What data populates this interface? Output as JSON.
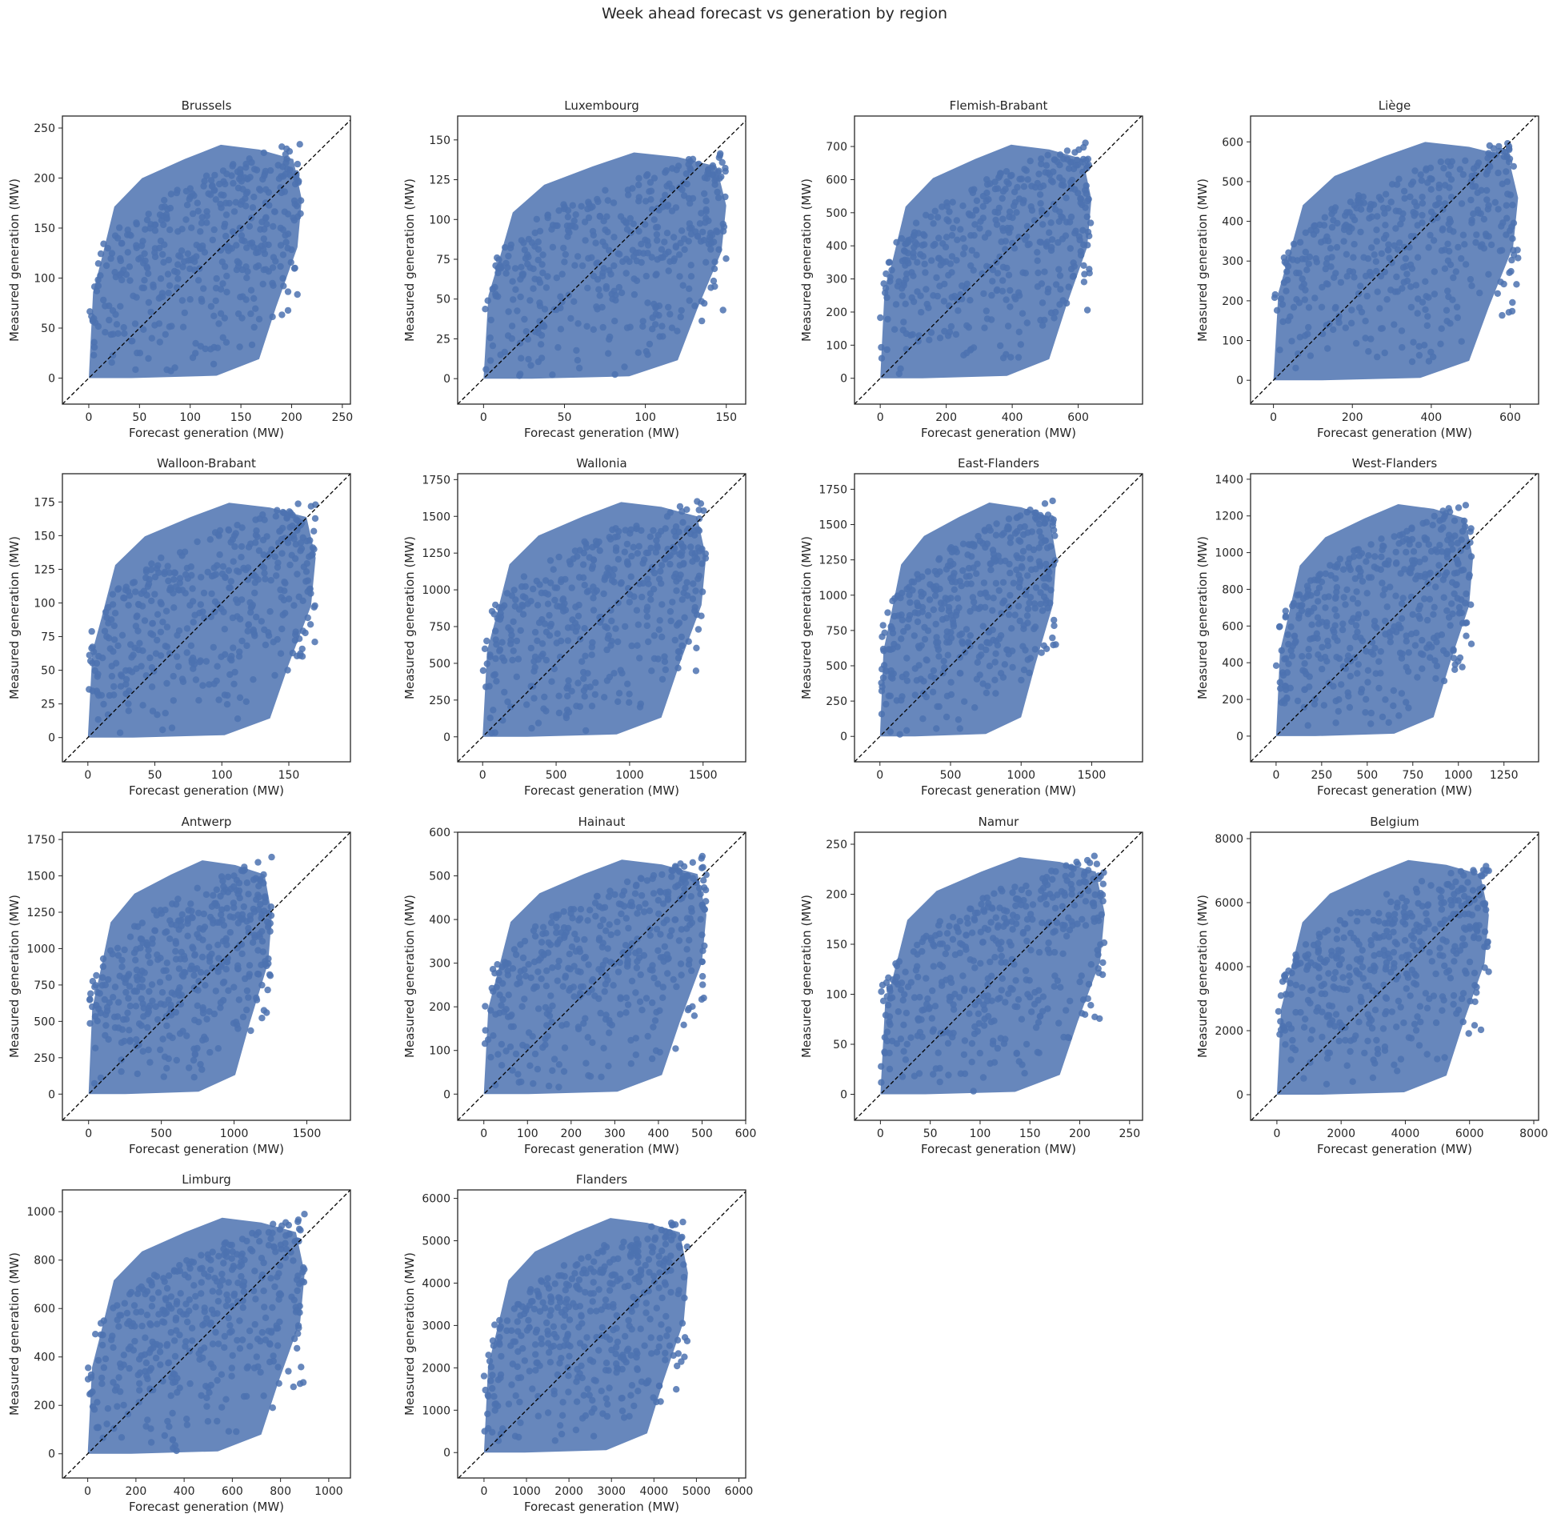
{
  "suptitle": "Week ahead forecast vs generation by region",
  "colors": {
    "points": "#4c72b0",
    "diagonal": "#000000",
    "frame": "#262626"
  },
  "chart_data": [
    {
      "type": "scatter",
      "title": "Brussels",
      "xlabel": "Forecast generation (MW)",
      "ylabel": "Measured generation (MW)",
      "xlim": [
        -26,
        258
      ],
      "ylim": [
        -26,
        262
      ],
      "xticks": [
        0,
        50,
        100,
        150,
        200,
        250
      ],
      "yticks": [
        0,
        50,
        100,
        150,
        200,
        250
      ],
      "xmax": 210,
      "ymax": 238,
      "grid": false
    },
    {
      "type": "scatter",
      "title": "Luxembourg",
      "xlabel": "Forecast generation (MW)",
      "ylabel": "Measured generation (MW)",
      "xlim": [
        -16,
        162
      ],
      "ylim": [
        -16,
        165
      ],
      "xticks": [
        0,
        50,
        100,
        150
      ],
      "yticks": [
        0,
        25,
        50,
        75,
        100,
        125,
        150
      ],
      "xmax": 150,
      "ymax": 145,
      "grid": false
    },
    {
      "type": "scatter",
      "title": "Flemish-Brabant",
      "xlabel": "Forecast generation (MW)",
      "ylabel": "Measured generation (MW)",
      "xlim": [
        -78,
        795
      ],
      "ylim": [
        -78,
        792
      ],
      "xticks": [
        0,
        200,
        400,
        600
      ],
      "yticks": [
        0,
        100,
        200,
        300,
        400,
        500,
        600,
        700
      ],
      "xmax": 640,
      "ymax": 720,
      "grid": false
    },
    {
      "type": "scatter",
      "title": "Liège",
      "xlabel": "Forecast generation (MW)",
      "ylabel": "Measured generation (MW)",
      "xlim": [
        -58,
        672
      ],
      "ylim": [
        -60,
        665
      ],
      "xticks": [
        0,
        200,
        400,
        600
      ],
      "yticks": [
        0,
        100,
        200,
        300,
        400,
        500,
        600
      ],
      "xmax": 620,
      "ymax": 612,
      "grid": false
    },
    {
      "type": "scatter",
      "title": "Walloon-Brabant",
      "xlabel": "Forecast generation (MW)",
      "ylabel": "Measured generation (MW)",
      "xlim": [
        -19,
        196
      ],
      "ylim": [
        -18,
        196
      ],
      "xticks": [
        0,
        50,
        100,
        150
      ],
      "yticks": [
        0,
        25,
        50,
        75,
        100,
        125,
        150,
        175
      ],
      "xmax": 170,
      "ymax": 178,
      "grid": false
    },
    {
      "type": "scatter",
      "title": "Wallonia",
      "xlabel": "Forecast generation (MW)",
      "ylabel": "Measured generation (MW)",
      "xlim": [
        -170,
        1790
      ],
      "ylim": [
        -170,
        1790
      ],
      "xticks": [
        0,
        500,
        1000,
        1500
      ],
      "yticks": [
        0,
        250,
        500,
        750,
        1000,
        1250,
        1500,
        1750
      ],
      "xmax": 1520,
      "ymax": 1630,
      "grid": false
    },
    {
      "type": "scatter",
      "title": "East-Flanders",
      "xlabel": "Forecast generation (MW)",
      "ylabel": "Measured generation (MW)",
      "xlim": [
        -180,
        1860
      ],
      "ylim": [
        -180,
        1860
      ],
      "xticks": [
        0,
        500,
        1000,
        1500
      ],
      "yticks": [
        0,
        250,
        500,
        750,
        1000,
        1250,
        1500,
        1750
      ],
      "xmax": 1250,
      "ymax": 1690,
      "grid": false
    },
    {
      "type": "scatter",
      "title": "West-Flanders",
      "xlabel": "Forecast generation (MW)",
      "ylabel": "Measured generation (MW)",
      "xlim": [
        -140,
        1440
      ],
      "ylim": [
        -140,
        1430
      ],
      "xticks": [
        0,
        250,
        500,
        750,
        1000,
        1250
      ],
      "yticks": [
        0,
        200,
        400,
        600,
        800,
        1000,
        1200,
        1400
      ],
      "xmax": 1080,
      "ymax": 1290,
      "grid": false
    },
    {
      "type": "scatter",
      "title": "Antwerp",
      "xlabel": "Forecast generation (MW)",
      "ylabel": "Measured generation (MW)",
      "xlim": [
        -180,
        1800
      ],
      "ylim": [
        -180,
        1800
      ],
      "xticks": [
        0,
        500,
        1000,
        1500
      ],
      "yticks": [
        0,
        250,
        500,
        750,
        1000,
        1250,
        1500,
        1750
      ],
      "xmax": 1260,
      "ymax": 1640,
      "grid": false
    },
    {
      "type": "scatter",
      "title": "Hainaut",
      "xlabel": "Forecast generation (MW)",
      "ylabel": "Measured generation (MW)",
      "xlim": [
        -60,
        600
      ],
      "ylim": [
        -60,
        600
      ],
      "xticks": [
        0,
        100,
        200,
        300,
        400,
        500,
        600
      ],
      "yticks": [
        0,
        100,
        200,
        300,
        400,
        500,
        600
      ],
      "xmax": 510,
      "ymax": 548,
      "grid": false
    },
    {
      "type": "scatter",
      "title": "Namur",
      "xlabel": "Forecast generation (MW)",
      "ylabel": "Measured generation (MW)",
      "xlim": [
        -26,
        263
      ],
      "ylim": [
        -26,
        262
      ],
      "xticks": [
        0,
        50,
        100,
        150,
        200,
        250
      ],
      "yticks": [
        0,
        50,
        100,
        150,
        200,
        250
      ],
      "xmax": 225,
      "ymax": 242,
      "grid": false
    },
    {
      "type": "scatter",
      "title": "Belgium",
      "xlabel": "Forecast generation (MW)",
      "ylabel": "Measured generation (MW)",
      "xlim": [
        -820,
        8150
      ],
      "ylim": [
        -800,
        8200
      ],
      "xticks": [
        0,
        2000,
        4000,
        6000,
        8000
      ],
      "yticks": [
        0,
        2000,
        4000,
        6000,
        8000
      ],
      "xmax": 6600,
      "ymax": 7480,
      "grid": false
    },
    {
      "type": "scatter",
      "title": "Limburg",
      "xlabel": "Forecast generation (MW)",
      "ylabel": "Measured generation (MW)",
      "xlim": [
        -105,
        1090
      ],
      "ylim": [
        -100,
        1090
      ],
      "xticks": [
        0,
        200,
        400,
        600,
        800,
        1000
      ],
      "yticks": [
        0,
        200,
        400,
        600,
        800,
        1000
      ],
      "xmax": 900,
      "ymax": 995,
      "grid": false
    },
    {
      "type": "scatter",
      "title": "Flanders",
      "xlabel": "Forecast generation (MW)",
      "ylabel": "Measured generation (MW)",
      "xlim": [
        -620,
        6160
      ],
      "ylim": [
        -600,
        6200
      ],
      "xticks": [
        0,
        1000,
        2000,
        3000,
        4000,
        5000,
        6000
      ],
      "yticks": [
        0,
        1000,
        2000,
        3000,
        4000,
        5000,
        6000
      ],
      "xmax": 4800,
      "ymax": 5650,
      "grid": false
    }
  ]
}
